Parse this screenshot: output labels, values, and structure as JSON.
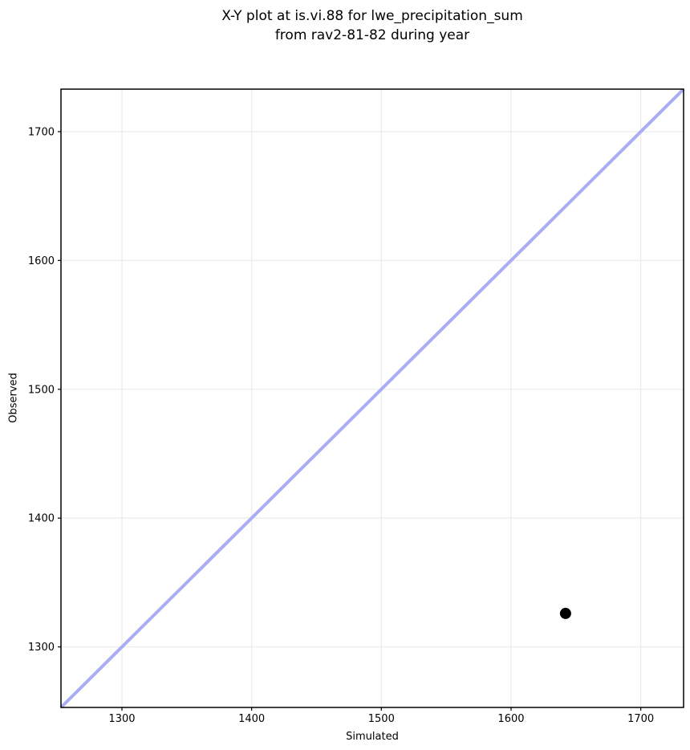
{
  "figure": {
    "title_line1": "X-Y plot at is.vi.88 for lwe_precipitation_sum",
    "title_line2": "from rav2-81-82 during year"
  },
  "chart_data": {
    "type": "scatter",
    "title": "X-Y plot at is.vi.88 for lwe_precipitation_sum\nfrom rav2-81-82 during year",
    "xlabel": "Simulated",
    "ylabel": "Observed",
    "xlim": [
      1253,
      1733
    ],
    "ylim": [
      1253,
      1733
    ],
    "xticks": [
      1300,
      1400,
      1500,
      1600,
      1700
    ],
    "yticks": [
      1300,
      1400,
      1500,
      1600,
      1700
    ],
    "grid": true,
    "legend": false,
    "colors": {
      "background": "#ffffff",
      "grid": "#ededed",
      "spine": "#000000",
      "tick_text": "#000000",
      "identity_line": "#aaadf3",
      "marker": "#000000"
    },
    "series": [
      {
        "name": "identity-line",
        "kind": "line",
        "x": [
          1253,
          1733
        ],
        "y": [
          1253,
          1733
        ],
        "color": "#aaadf3",
        "width": 4
      },
      {
        "name": "observations",
        "kind": "scatter",
        "points": [
          {
            "x": 1642,
            "y": 1326
          }
        ],
        "color": "#000000",
        "radius": 7
      }
    ]
  }
}
